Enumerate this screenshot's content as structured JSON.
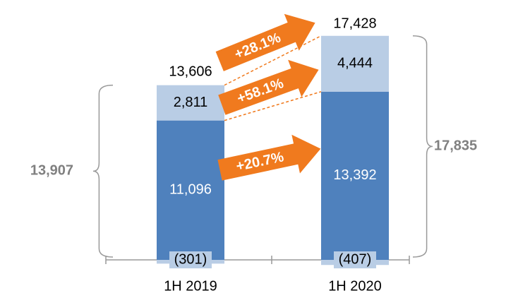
{
  "chart_data": {
    "type": "stacked_bar",
    "categories": [
      "1H 2019",
      "1H 2020"
    ],
    "series": [
      {
        "color": "#4f81bd",
        "values": [
          11096,
          13392
        ],
        "value_labels": [
          "11,096",
          "13,392"
        ]
      },
      {
        "color": "#b9cde5",
        "values": [
          2811,
          4444
        ],
        "value_labels": [
          "2,811",
          "4,444"
        ]
      },
      {
        "color": "#b9cde5",
        "values": [
          -301,
          -407
        ],
        "value_labels": [
          "(301)",
          "(407)"
        ]
      }
    ],
    "totals": [
      13606,
      17428
    ],
    "total_labels": [
      "13,606",
      "17,428"
    ],
    "gross_totals": [
      13907,
      17835
    ],
    "gross_total_labels": [
      "13,907",
      "17,835"
    ],
    "annotations": [
      "+28.1%",
      "+58.1%",
      "+20.7%"
    ],
    "annotation_color": "#f07a1e"
  }
}
